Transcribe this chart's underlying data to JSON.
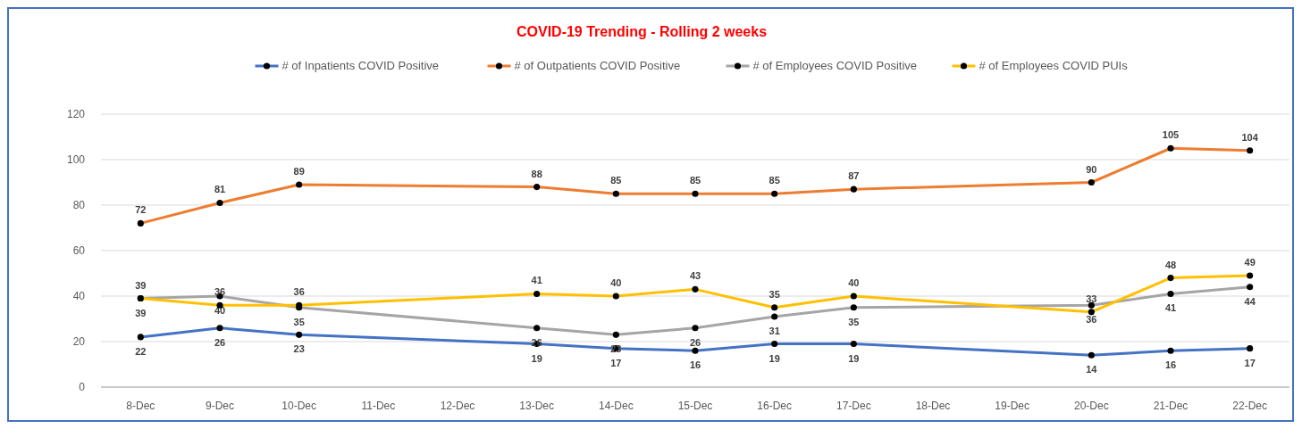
{
  "chart_data": {
    "type": "line",
    "title": "COVID-19 Trending - Rolling 2 weeks",
    "categories": [
      "8-Dec",
      "9-Dec",
      "10-Dec",
      "11-Dec",
      "12-Dec",
      "13-Dec",
      "14-Dec",
      "15-Dec",
      "16-Dec",
      "17-Dec",
      "18-Dec",
      "19-Dec",
      "20-Dec",
      "21-Dec",
      "22-Dec"
    ],
    "series": [
      {
        "name": "# of Inpatients COVID Positive",
        "color": "#4472c4",
        "values": [
          22,
          26,
          23,
          null,
          null,
          19,
          17,
          16,
          19,
          19,
          null,
          null,
          14,
          16,
          17
        ]
      },
      {
        "name": "# of Outpatients COVID Positive",
        "color": "#ed7d31",
        "values": [
          72,
          81,
          89,
          null,
          null,
          88,
          85,
          85,
          85,
          87,
          null,
          null,
          90,
          105,
          104
        ]
      },
      {
        "name": "# of Employees COVID Positive",
        "color": "#a5a5a5",
        "values": [
          39,
          40,
          35,
          null,
          null,
          26,
          23,
          26,
          31,
          35,
          null,
          null,
          36,
          41,
          44
        ]
      },
      {
        "name": "# of Employees COVID PUIs",
        "color": "#ffc000",
        "values": [
          39,
          36,
          36,
          null,
          null,
          41,
          40,
          43,
          35,
          40,
          null,
          null,
          33,
          48,
          49
        ]
      }
    ],
    "ylim": [
      0,
      120
    ],
    "yticks": [
      0,
      20,
      40,
      60,
      80,
      100,
      120
    ],
    "grid": "y",
    "legend": "top",
    "marker": "circle",
    "line_style": "solid",
    "data_labels": true
  }
}
